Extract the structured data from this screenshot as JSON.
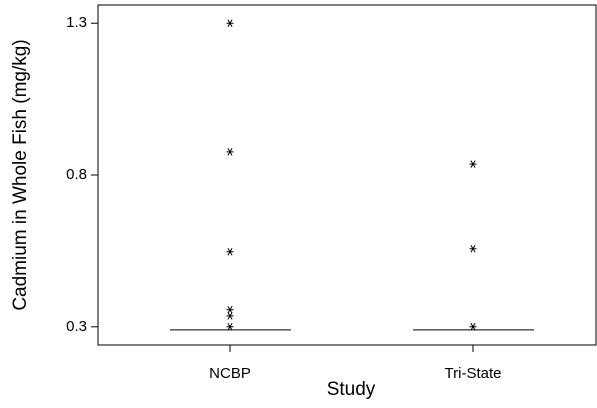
{
  "chart_data": {
    "type": "strip",
    "x_label": "Study",
    "y_label": "Cadmium in Whole Fish (mg/kg)",
    "categories": [
      "NCBP",
      "Tri-State"
    ],
    "values": [
      [
        1.3,
        0.876,
        0.547,
        0.356,
        0.336,
        0.3
      ],
      [
        0.836,
        0.557,
        0.3
      ]
    ],
    "lines": [
      0.29,
      0.29
    ],
    "ylim": [
      0.24,
      1.36
    ],
    "yticks": [
      0.3,
      0.8,
      1.3
    ],
    "color": "#000000"
  }
}
